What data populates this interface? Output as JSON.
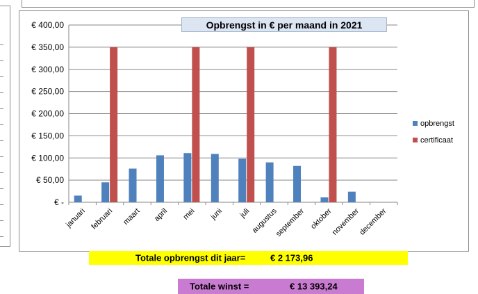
{
  "chart_data": {
    "type": "bar",
    "title": "Opbrengst in € per maand in 2021",
    "categories": [
      "januari",
      "februari",
      "maart",
      "april",
      "mei",
      "juni",
      "juli",
      "augustus",
      "september",
      "oktober",
      "november",
      "december"
    ],
    "series": [
      {
        "name": "opbrengst",
        "color": "#4f81bd",
        "values": [
          15,
          45,
          76,
          106,
          111,
          109,
          98,
          90,
          82,
          11,
          24,
          0
        ]
      },
      {
        "name": "certificaat",
        "color": "#c0504d",
        "values": [
          0,
          350,
          0,
          0,
          350,
          0,
          350,
          0,
          0,
          350,
          0,
          0
        ]
      }
    ],
    "ylim": [
      0,
      400
    ],
    "yticks": [
      0,
      50,
      100,
      150,
      200,
      250,
      300,
      350,
      400
    ],
    "ytick_labels": [
      "€ -",
      "€ 50,00",
      "€ 100,00",
      "€ 150,00",
      "€ 200,00",
      "€ 250,00",
      "€ 300,00",
      "€ 350,00",
      "€ 400,00"
    ],
    "grid": true,
    "legend_position": "right"
  },
  "summary": {
    "total_revenue_label": "Totale opbrengst dit jaar=",
    "total_revenue_value": "€ 2 173,96",
    "total_profit_label": "Totale winst =",
    "total_profit_value": "€ 13 393,24"
  }
}
